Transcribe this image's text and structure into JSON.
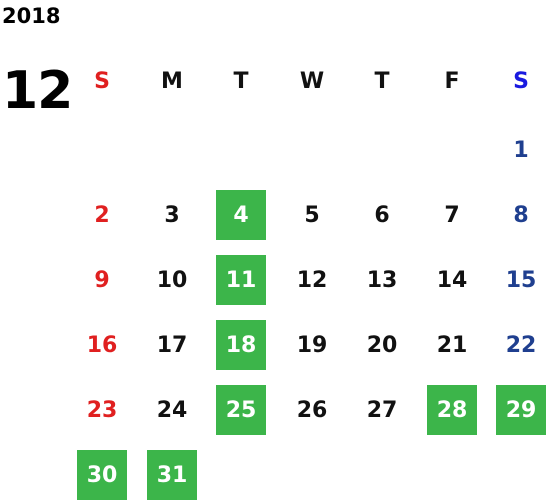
{
  "year": "2018",
  "month": "12",
  "weekdays": [
    "S",
    "M",
    "T",
    "W",
    "T",
    "F",
    "S"
  ],
  "days": [
    {
      "label": "1",
      "week": 0,
      "dow": 6,
      "highlight": false
    },
    {
      "label": "2",
      "week": 1,
      "dow": 0,
      "highlight": false
    },
    {
      "label": "3",
      "week": 1,
      "dow": 1,
      "highlight": false
    },
    {
      "label": "4",
      "week": 1,
      "dow": 2,
      "highlight": true
    },
    {
      "label": "5",
      "week": 1,
      "dow": 3,
      "highlight": false
    },
    {
      "label": "6",
      "week": 1,
      "dow": 4,
      "highlight": false
    },
    {
      "label": "7",
      "week": 1,
      "dow": 5,
      "highlight": false
    },
    {
      "label": "8",
      "week": 1,
      "dow": 6,
      "highlight": false
    },
    {
      "label": "9",
      "week": 2,
      "dow": 0,
      "highlight": false
    },
    {
      "label": "10",
      "week": 2,
      "dow": 1,
      "highlight": false
    },
    {
      "label": "11",
      "week": 2,
      "dow": 2,
      "highlight": true
    },
    {
      "label": "12",
      "week": 2,
      "dow": 3,
      "highlight": false
    },
    {
      "label": "13",
      "week": 2,
      "dow": 4,
      "highlight": false
    },
    {
      "label": "14",
      "week": 2,
      "dow": 5,
      "highlight": false
    },
    {
      "label": "15",
      "week": 2,
      "dow": 6,
      "highlight": false
    },
    {
      "label": "16",
      "week": 3,
      "dow": 0,
      "highlight": false
    },
    {
      "label": "17",
      "week": 3,
      "dow": 1,
      "highlight": false
    },
    {
      "label": "18",
      "week": 3,
      "dow": 2,
      "highlight": true
    },
    {
      "label": "19",
      "week": 3,
      "dow": 3,
      "highlight": false
    },
    {
      "label": "20",
      "week": 3,
      "dow": 4,
      "highlight": false
    },
    {
      "label": "21",
      "week": 3,
      "dow": 5,
      "highlight": false
    },
    {
      "label": "22",
      "week": 3,
      "dow": 6,
      "highlight": false
    },
    {
      "label": "23",
      "week": 4,
      "dow": 0,
      "highlight": false
    },
    {
      "label": "24",
      "week": 4,
      "dow": 1,
      "highlight": false
    },
    {
      "label": "25",
      "week": 4,
      "dow": 2,
      "highlight": true
    },
    {
      "label": "26",
      "week": 4,
      "dow": 3,
      "highlight": false
    },
    {
      "label": "27",
      "week": 4,
      "dow": 4,
      "highlight": false
    },
    {
      "label": "28",
      "week": 4,
      "dow": 5,
      "highlight": true
    },
    {
      "label": "29",
      "week": 4,
      "dow": 6,
      "highlight": true
    },
    {
      "label": "30",
      "week": 5,
      "dow": 0,
      "highlight": true
    },
    {
      "label": "31",
      "week": 5,
      "dow": 1,
      "highlight": true
    }
  ],
  "colors": {
    "highlight": "#3cb54a",
    "sunday": "#e02020",
    "saturday": "#1f3f8f",
    "saturday_header": "#1a1ae0",
    "weekday": "#111111"
  }
}
